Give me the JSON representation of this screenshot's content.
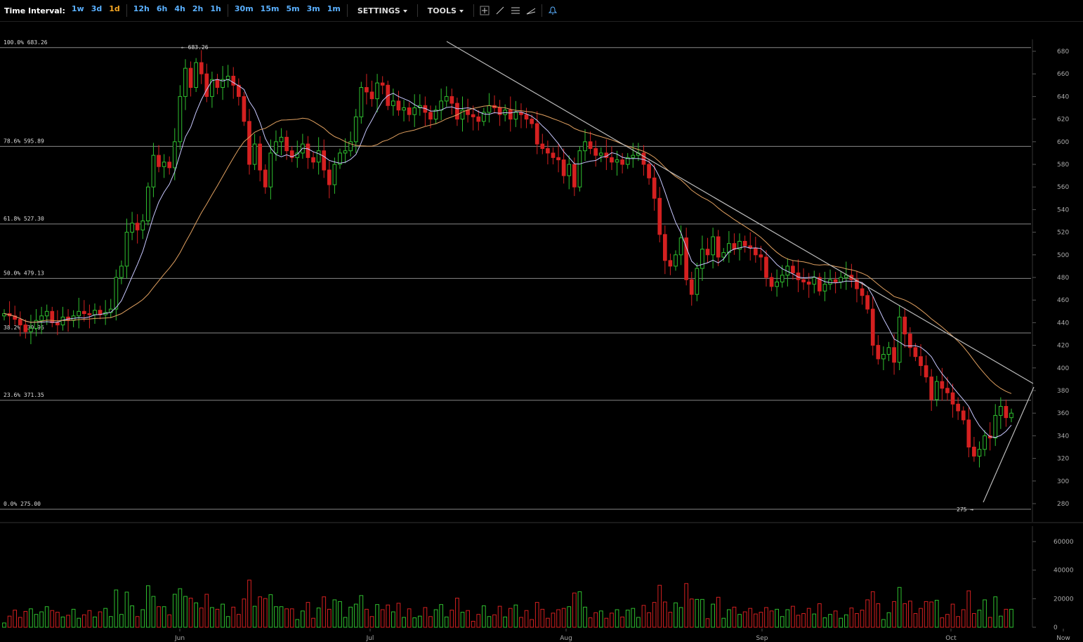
{
  "toolbar": {
    "time_interval_label": "Time Interval:",
    "intervals": [
      "1w",
      "3d",
      "1d",
      "12h",
      "6h",
      "4h",
      "2h",
      "1h",
      "30m",
      "15m",
      "5m",
      "3m",
      "1m"
    ],
    "active_interval": "1d",
    "settings_label": "SETTINGS",
    "tools_label": "TOOLS",
    "tool_icons": [
      "crosshair-icon",
      "line-draw-icon",
      "horizontal-lines-icon",
      "fib-draw-icon"
    ],
    "alert_icon": "bell-icon"
  },
  "colors": {
    "up": "#2fbf2f",
    "down": "#d42020",
    "fast_ma": "#c8c8ff",
    "slow_ma": "#e0a060",
    "fib_line": "#888888",
    "trendline": "#bbbbbb"
  },
  "chart_data": {
    "type": "candlestick",
    "price_axis": {
      "ticks": [
        680,
        660,
        640,
        620,
        600,
        580,
        560,
        540,
        520,
        500,
        480,
        460,
        440,
        420,
        400,
        380,
        360,
        340,
        320,
        300,
        280
      ]
    },
    "volume_axis": {
      "ticks": [
        60000,
        40000,
        20000,
        0
      ]
    },
    "x_labels": [
      "Jun",
      "Jul",
      "Aug",
      "Sep",
      "Oct",
      "Now"
    ],
    "fib_levels": [
      {
        "label": "100.0% 683.26",
        "price": 683.26
      },
      {
        "label": "78.6% 595.89",
        "price": 595.89
      },
      {
        "label": "61.8% 527.30",
        "price": 527.3
      },
      {
        "label": "50.0% 479.13",
        "price": 479.13
      },
      {
        "label": "38.2% 430.96",
        "price": 430.96
      },
      {
        "label": "23.6% 371.35",
        "price": 371.35
      },
      {
        "label": "0.0% 275.00",
        "price": 275.0
      }
    ],
    "high_marker": "← 683.26",
    "low_marker": "275 →",
    "closes": [
      448,
      446,
      443,
      438,
      432,
      435,
      442,
      446,
      450,
      440,
      438,
      445,
      442,
      446,
      450,
      448,
      447,
      451,
      447,
      449,
      452,
      480,
      490,
      520,
      528,
      522,
      530,
      560,
      588,
      578,
      582,
      577,
      600,
      640,
      665,
      648,
      670,
      660,
      640,
      655,
      648,
      655,
      658,
      650,
      640,
      618,
      580,
      598,
      575,
      560,
      590,
      600,
      604,
      592,
      586,
      590,
      598,
      586,
      582,
      592,
      575,
      562,
      580,
      590,
      592,
      600,
      622,
      648,
      644,
      638,
      652,
      650,
      632,
      636,
      628,
      630,
      624,
      630,
      632,
      626,
      620,
      628,
      636,
      640,
      634,
      620,
      628,
      624,
      622,
      618,
      626,
      632,
      630,
      624,
      628,
      620,
      626,
      624,
      620,
      616,
      598,
      594,
      590,
      586,
      584,
      570,
      580,
      560,
      592,
      600,
      594,
      588,
      590,
      586,
      582,
      584,
      580,
      586,
      588,
      590,
      580,
      568,
      550,
      518,
      495,
      490,
      500,
      515,
      478,
      465,
      488,
      505,
      500,
      516,
      498,
      502,
      510,
      505,
      512,
      508,
      506,
      500,
      498,
      480,
      472,
      476,
      482,
      490,
      484,
      478,
      476,
      474,
      480,
      468,
      474,
      478,
      476,
      480,
      482,
      478,
      470,
      464,
      452,
      420,
      408,
      412,
      418,
      405,
      445,
      430,
      418,
      410,
      402,
      392,
      372,
      388,
      382,
      378,
      368,
      362,
      354,
      330,
      322,
      328,
      340,
      338,
      358,
      366,
      356,
      360
    ]
  }
}
